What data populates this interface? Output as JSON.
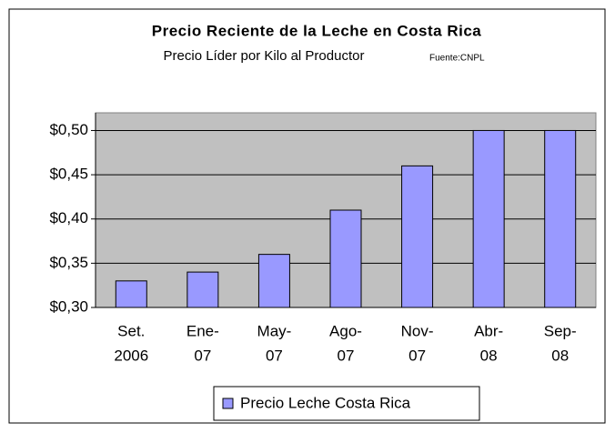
{
  "chart_data": {
    "type": "bar",
    "title": "Precio Reciente de la Leche en Costa Rica",
    "subtitle": "Precio Líder por Kilo al Productor",
    "source": "Fuente:CNPL",
    "categories": [
      [
        "Set.",
        "2006"
      ],
      [
        "Ene-",
        "07"
      ],
      [
        "May-",
        "07"
      ],
      [
        "Ago-",
        "07"
      ],
      [
        "Nov-",
        "07"
      ],
      [
        "Abr-",
        "08"
      ],
      [
        "Sep-",
        "08"
      ]
    ],
    "series": [
      {
        "name": "Precio Leche Costa Rica",
        "color": "#9999ff",
        "values": [
          0.33,
          0.34,
          0.36,
          0.41,
          0.46,
          0.5,
          0.5
        ]
      }
    ],
    "ylim": [
      0.3,
      0.52
    ],
    "yticks": [
      {
        "value": 0.3,
        "label": "$0,30"
      },
      {
        "value": 0.35,
        "label": "$0,35"
      },
      {
        "value": 0.4,
        "label": "$0,40"
      },
      {
        "value": 0.45,
        "label": "$0,45"
      },
      {
        "value": 0.5,
        "label": "$0,50"
      }
    ],
    "grid": true,
    "legend": "bottom"
  }
}
